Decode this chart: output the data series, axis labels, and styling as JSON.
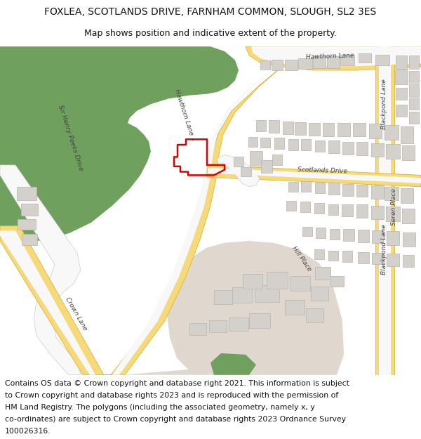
{
  "title_line1": "FOXLEA, SCOTLANDS DRIVE, FARNHAM COMMON, SLOUGH, SL2 3ES",
  "title_line2": "Map shows position and indicative extent of the property.",
  "title_fontsize": 10,
  "subtitle_fontsize": 9,
  "footer_fontsize": 7.8,
  "bg_color": "#ffffff",
  "map_bg": "#f0ebe4",
  "green_color": "#6fa05e",
  "road_yellow": "#f5d97a",
  "road_outline": "#d4b83a",
  "road_white": "#f8f8f8",
  "building_color": "#d4d0cb",
  "building_edge": "#b8b4af",
  "plot_color": "#dd0000",
  "plot_linewidth": 1.8,
  "label_color": "#444444",
  "beige_area": "#e0d8cf",
  "footer_lines": [
    "Contains OS data © Crown copyright and database right 2021. This information is subject",
    "to Crown copyright and database rights 2023 and is reproduced with the permission of",
    "HM Land Registry. The polygons (including the associated geometry, namely x, y",
    "co-ordinates) are subject to Crown copyright and database rights 2023 Ordnance Survey",
    "100026316."
  ]
}
